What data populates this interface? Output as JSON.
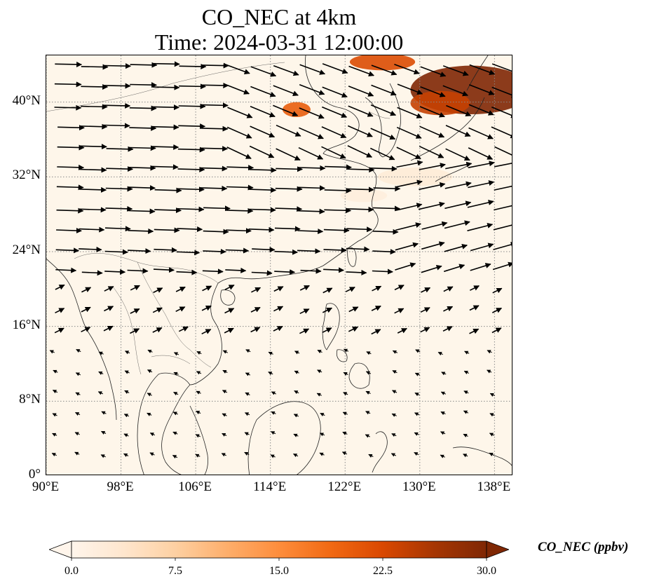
{
  "title": {
    "line1": "CO_NEC at 4km",
    "line2": "Time: 2024-03-31 12:00:00"
  },
  "map": {
    "extent": {
      "lon_min": 90,
      "lon_max": 140,
      "lat_min": 0,
      "lat_max": 45
    },
    "gridlines": true,
    "lat_ticks": [
      {
        "value": 40,
        "label": "40°N"
      },
      {
        "value": 32,
        "label": "32°N"
      },
      {
        "value": 24,
        "label": "24°N"
      },
      {
        "value": 16,
        "label": "16°N"
      },
      {
        "value": 8,
        "label": "8°N"
      },
      {
        "value": 0,
        "label": "0°"
      }
    ],
    "lon_ticks": [
      {
        "value": 90,
        "label": "90°E"
      },
      {
        "value": 98,
        "label": "98°E"
      },
      {
        "value": 106,
        "label": "106°E"
      },
      {
        "value": 114,
        "label": "114°E"
      },
      {
        "value": 122,
        "label": "122°E"
      },
      {
        "value": 130,
        "label": "130°E"
      },
      {
        "value": 138,
        "label": "138°E"
      }
    ],
    "background_color": "#fef6ea",
    "plumes": [
      {
        "lon": 135.5,
        "lat": 41.3,
        "rlon": 6.5,
        "rlat": 2.6,
        "value": 30
      },
      {
        "lon": 132.2,
        "lat": 39.9,
        "rlon": 3.2,
        "rlat": 1.3,
        "value": 24
      },
      {
        "lon": 126.0,
        "lat": 44.3,
        "rlon": 3.5,
        "rlat": 0.9,
        "value": 22
      },
      {
        "lon": 116.8,
        "lat": 39.2,
        "rlon": 1.5,
        "rlat": 0.8,
        "value": 20
      },
      {
        "lon": 129.5,
        "lat": 32.0,
        "rlon": 4.0,
        "rlat": 1.0,
        "value": 4
      },
      {
        "lon": 124.0,
        "lat": 30.0,
        "rlon": 2.5,
        "rlat": 0.7,
        "value": 3
      }
    ],
    "wind_arrows_description_note": ""
  },
  "colorbar": {
    "label": "CO_NEC (ppbv)",
    "min": 0.0,
    "max": 30.0,
    "extend": "both",
    "ticks": [
      "0.0",
      "7.5",
      "15.0",
      "22.5",
      "30.0"
    ],
    "colors": [
      "#fff5eb",
      "#fee6ce",
      "#fdd0a2",
      "#fdae6b",
      "#fd8d3c",
      "#f16913",
      "#d94801",
      "#a63603",
      "#7f2704"
    ]
  }
}
